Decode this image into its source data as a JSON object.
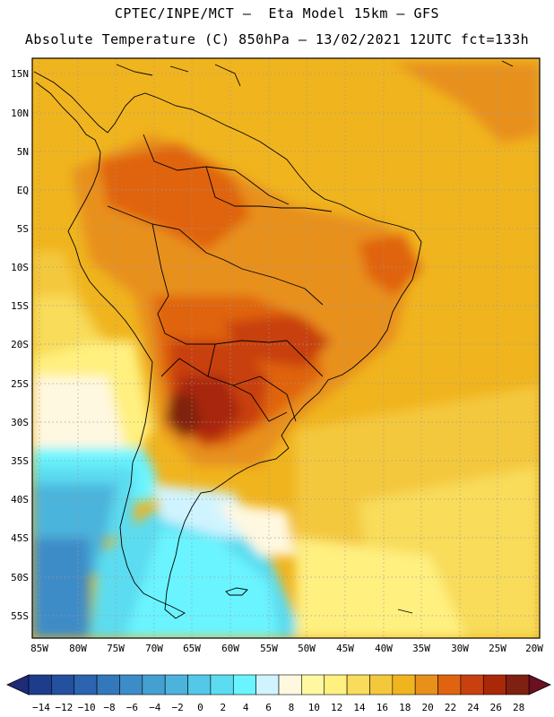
{
  "header": {
    "line1": "CPTEC/INPE/MCT –  Eta Model 15km – GFS",
    "line2": "Absolute Temperature (C) 850hPa – 13/02/2021 12UTC fct=133h"
  },
  "map": {
    "lat_labels": [
      "15N",
      "10N",
      "5N",
      "EQ",
      "5S",
      "10S",
      "15S",
      "20S",
      "25S",
      "30S",
      "35S",
      "40S",
      "45S",
      "50S",
      "55S"
    ],
    "lon_labels": [
      "85W",
      "80W",
      "75W",
      "70W",
      "65W",
      "60W",
      "55W",
      "50W",
      "45W",
      "40W",
      "35W",
      "30W",
      "25W",
      "20W"
    ]
  },
  "colorbar": {
    "labels": [
      "-14",
      "-12",
      "-10",
      "-8",
      "-6",
      "-4",
      "-2",
      "0",
      "2",
      "4",
      "6",
      "8",
      "10",
      "12",
      "14",
      "16",
      "18",
      "20",
      "22",
      "24",
      "26",
      "28"
    ],
    "colors": [
      "#1e3c8c",
      "#2450a0",
      "#2c64b0",
      "#3478bc",
      "#3c8cc8",
      "#44a0d0",
      "#4cb4dc",
      "#54c8e8",
      "#5cdcf0",
      "#6af4ff",
      "#d0f4ff",
      "#fff8e0",
      "#fff8a0",
      "#fff080",
      "#f8dc5a",
      "#f4c83c",
      "#f0b41e",
      "#e8901a",
      "#e06410",
      "#c84010",
      "#a82808",
      "#802010"
    ],
    "end_low": "#1e2c78",
    "end_high": "#6a1020"
  }
}
